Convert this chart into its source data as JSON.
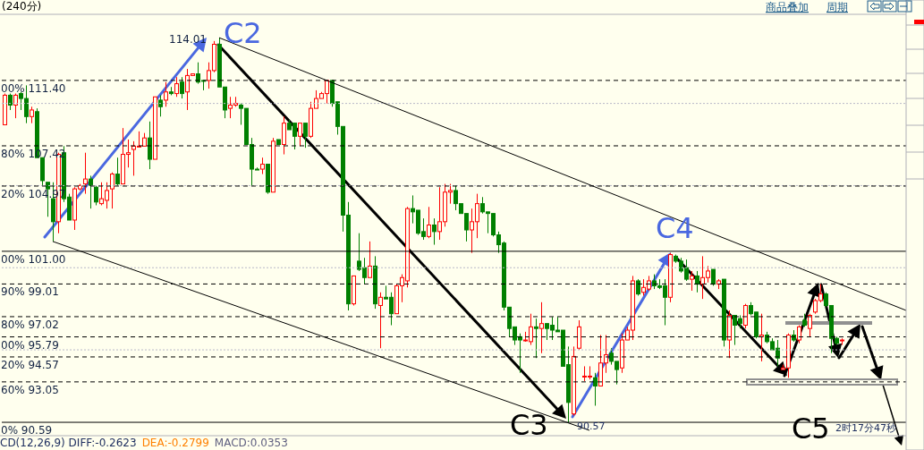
{
  "chart_data": {
    "type": "candlestick",
    "categories": [
      null,
      null,
      null,
      null,
      null,
      null,
      null,
      null,
      null,
      null,
      null,
      null,
      null,
      null,
      null,
      null,
      null,
      null,
      null,
      null,
      null,
      null,
      null,
      null,
      null,
      null,
      null,
      null,
      null,
      null,
      null,
      null,
      null,
      null,
      null,
      null,
      null,
      null,
      null,
      null,
      null,
      null,
      null,
      null,
      null,
      null,
      null,
      null,
      null,
      null,
      null,
      null,
      null,
      null,
      null,
      null,
      null,
      null,
      null,
      null,
      null,
      null,
      null,
      null,
      null,
      null,
      null,
      null,
      null,
      null,
      null,
      null,
      null,
      null,
      null,
      null,
      null,
      null,
      null,
      null,
      null,
      null,
      null,
      null,
      null,
      null,
      null,
      null,
      null,
      null,
      null,
      null,
      null,
      null,
      null,
      null,
      null,
      null,
      null,
      null,
      null,
      null,
      null,
      null,
      null,
      null,
      null,
      null,
      null,
      null,
      null,
      null,
      null,
      null,
      null,
      null,
      null,
      null,
      null,
      null,
      null,
      null,
      null,
      null,
      null,
      null,
      null,
      null,
      null,
      null,
      null,
      null,
      null,
      null,
      null,
      null,
      null,
      null,
      null,
      null,
      null,
      null,
      null,
      null,
      null,
      null,
      null,
      null,
      null,
      null,
      null,
      null,
      null,
      null,
      null,
      null,
      null,
      null,
      null,
      null,
      null,
      null,
      null,
      null,
      null,
      null,
      null,
      null,
      null
    ],
    "ohlc": [
      [
        108.7,
        110.6,
        108.7,
        110.5
      ],
      [
        110.5,
        110.6,
        109.6,
        109.9
      ],
      [
        109.9,
        110.6,
        109.1,
        110.5
      ],
      [
        110.6,
        110.7,
        109.6,
        110.3
      ],
      [
        110.3,
        111.1,
        108.8,
        109.2
      ],
      [
        109.2,
        109.8,
        108.8,
        109.6
      ],
      [
        109.5,
        109.7,
        106.7,
        106.7
      ],
      [
        106.7,
        106.7,
        105.0,
        105.3
      ],
      [
        105.2,
        105.2,
        103.1,
        104.8
      ],
      [
        104.2,
        105.2,
        101.6,
        102.8
      ],
      [
        102.8,
        107.0,
        102.1,
        106.9
      ],
      [
        107.0,
        107.4,
        104.0,
        104.2
      ],
      [
        104.3,
        104.5,
        102.9,
        102.9
      ],
      [
        102.9,
        104.9,
        102.3,
        104.8
      ],
      [
        104.8,
        105.1,
        104.7,
        105.0
      ],
      [
        105.1,
        107.0,
        104.5,
        105.4
      ],
      [
        105.4,
        105.6,
        103.6,
        105.0
      ],
      [
        104.9,
        105.0,
        103.8,
        104.0
      ],
      [
        103.9,
        105.2,
        103.8,
        104.2
      ],
      [
        104.1,
        105.2,
        103.6,
        104.7
      ],
      [
        104.8,
        105.8,
        103.6,
        105.7
      ],
      [
        105.7,
        106.7,
        105.0,
        105.1
      ],
      [
        105.1,
        108.5,
        105.1,
        106.9
      ],
      [
        106.9,
        107.8,
        106.1,
        107.0
      ],
      [
        107.2,
        107.7,
        105.6,
        107.4
      ],
      [
        107.4,
        108.3,
        107.4,
        107.4
      ],
      [
        107.4,
        108.2,
        107.4,
        107.9
      ],
      [
        107.9,
        108.9,
        106.0,
        106.6
      ],
      [
        106.6,
        110.4,
        106.6,
        110.4
      ],
      [
        110.2,
        110.5,
        109.2,
        109.8
      ],
      [
        110.2,
        111.3,
        109.8,
        110.7
      ],
      [
        110.7,
        111.0,
        110.5,
        110.6
      ],
      [
        110.6,
        111.6,
        110.4,
        111.2
      ],
      [
        111.3,
        111.6,
        110.3,
        110.6
      ],
      [
        110.7,
        112.1,
        109.6,
        111.7
      ],
      [
        111.7,
        111.8,
        111.7,
        111.8
      ],
      [
        111.8,
        112.5,
        111.2,
        111.3
      ],
      [
        111.4,
        111.4,
        110.8,
        111.4
      ],
      [
        111.4,
        112.5,
        110.9,
        112.0
      ],
      [
        112.0,
        113.8,
        111.9,
        113.6
      ],
      [
        113.6,
        114.01,
        111.0,
        111.0
      ],
      [
        111.0,
        111.0,
        109.1,
        109.6
      ],
      [
        109.7,
        110.4,
        109.1,
        109.9
      ],
      [
        109.9,
        110.4,
        109.8,
        110.0
      ],
      [
        109.9,
        110.0,
        108.7,
        109.7
      ],
      [
        109.7,
        109.7,
        107.5,
        107.5
      ],
      [
        107.5,
        107.9,
        105.0,
        106.0
      ],
      [
        106.0,
        106.1,
        106.0,
        106.0
      ],
      [
        106.0,
        106.7,
        105.7,
        106.3
      ],
      [
        106.3,
        106.3,
        104.5,
        104.6
      ],
      [
        104.6,
        107.9,
        104.6,
        107.7
      ],
      [
        107.8,
        107.8,
        107.5,
        107.5
      ],
      [
        107.5,
        109.2,
        106.9,
        108.8
      ],
      [
        108.8,
        109.0,
        108.4,
        108.4
      ],
      [
        108.8,
        108.8,
        107.2,
        108.0
      ],
      [
        108.0,
        108.8,
        107.4,
        108.8
      ],
      [
        108.8,
        108.8,
        107.3,
        108.0
      ],
      [
        108.0,
        110.1,
        107.9,
        109.7
      ],
      [
        109.7,
        110.8,
        109.7,
        110.3
      ],
      [
        110.3,
        110.7,
        110.3,
        110.6
      ],
      [
        110.6,
        111.4,
        110.0,
        111.4
      ],
      [
        111.4,
        111.4,
        109.8,
        110.0
      ],
      [
        110.1,
        110.1,
        108.1,
        108.6
      ],
      [
        108.6,
        108.6,
        102.2,
        103.2
      ],
      [
        103.2,
        104.0,
        97.4,
        97.8
      ],
      [
        97.8,
        99.5,
        97.7,
        99.5
      ],
      [
        100.4,
        102.1,
        99.8,
        99.9
      ],
      [
        100.0,
        100.6,
        99.0,
        99.4
      ],
      [
        99.4,
        101.6,
        99.4,
        100.1
      ],
      [
        100.1,
        100.7,
        97.5,
        97.8
      ],
      [
        97.7,
        98.5,
        95.1,
        98.2
      ],
      [
        98.2,
        98.9,
        98.1,
        98.1
      ],
      [
        98.2,
        98.5,
        96.5,
        97.2
      ],
      [
        97.2,
        99.0,
        97.2,
        98.9
      ],
      [
        98.9,
        99.6,
        97.9,
        99.4
      ],
      [
        99.2,
        103.7,
        98.8,
        103.6
      ],
      [
        103.6,
        104.4,
        102.7,
        103.4
      ],
      [
        103.5,
        103.5,
        102.0,
        102.1
      ],
      [
        102.2,
        103.0,
        101.7,
        101.9
      ],
      [
        101.9,
        103.7,
        101.8,
        102.6
      ],
      [
        102.6,
        103.0,
        101.4,
        102.2
      ],
      [
        102.2,
        104.9,
        101.7,
        102.8
      ],
      [
        102.8,
        105.1,
        102.5,
        104.6
      ],
      [
        104.6,
        105.1,
        103.9,
        104.7
      ],
      [
        104.7,
        105.0,
        103.5,
        103.9
      ],
      [
        103.9,
        103.9,
        103.3,
        103.3
      ],
      [
        103.3,
        103.3,
        101.6,
        102.3
      ],
      [
        102.3,
        103.6,
        100.9,
        102.8
      ],
      [
        102.8,
        104.5,
        101.8,
        103.9
      ],
      [
        103.9,
        104.3,
        103.3,
        103.4
      ],
      [
        103.4,
        103.4,
        102.1,
        103.3
      ],
      [
        103.3,
        103.3,
        101.9,
        102.0
      ],
      [
        102.0,
        102.2,
        100.9,
        101.4
      ],
      [
        101.5,
        101.6,
        97.4,
        97.6
      ],
      [
        97.6,
        97.6,
        95.8,
        96.3
      ],
      [
        96.4,
        96.4,
        95.3,
        95.6
      ],
      [
        95.8,
        96.0,
        93.6,
        95.6
      ],
      [
        95.6,
        96.1,
        95.5,
        95.6
      ],
      [
        95.5,
        97.2,
        95.3,
        96.4
      ],
      [
        96.4,
        96.9,
        94.5,
        96.3
      ],
      [
        96.3,
        97.9,
        94.8,
        96.6
      ],
      [
        96.6,
        96.6,
        95.6,
        96.3
      ],
      [
        96.5,
        97.0,
        95.6,
        96.2
      ],
      [
        96.2,
        97.0,
        96.1,
        96.1
      ],
      [
        96.2,
        96.2,
        94.0,
        94.0
      ],
      [
        94.1,
        95.2,
        90.57,
        91.8
      ],
      [
        91.1,
        95.2,
        91.0,
        94.6
      ],
      [
        95.1,
        96.8,
        95.0,
        96.4
      ],
      [
        93.4,
        94.0,
        93.1,
        93.4
      ],
      [
        93.4,
        94.0,
        93.2,
        93.4
      ],
      [
        93.3,
        93.6,
        91.6,
        92.8
      ],
      [
        92.8,
        95.9,
        92.8,
        94.2
      ],
      [
        94.2,
        95.9,
        93.6,
        94.7
      ],
      [
        94.8,
        95.1,
        94.1,
        94.3
      ],
      [
        94.3,
        94.3,
        92.9,
        93.8
      ],
      [
        93.9,
        96.0,
        93.6,
        95.6
      ],
      [
        95.6,
        96.4,
        95.6,
        96.2
      ],
      [
        96.2,
        99.5,
        95.6,
        99.2
      ],
      [
        99.2,
        99.3,
        98.3,
        98.4
      ],
      [
        98.5,
        99.3,
        98.3,
        98.8
      ],
      [
        98.7,
        99.5,
        98.6,
        99.2
      ],
      [
        99.2,
        99.6,
        98.7,
        98.9
      ],
      [
        98.9,
        99.3,
        98.7,
        98.8
      ],
      [
        98.9,
        99.3,
        96.5,
        98.2
      ],
      [
        98.2,
        100.9,
        97.9,
        100.8
      ],
      [
        100.7,
        100.8,
        100.3,
        100.4
      ],
      [
        100.4,
        100.6,
        99.7,
        99.8
      ],
      [
        100.0,
        100.5,
        99.2,
        99.3
      ],
      [
        99.3,
        99.8,
        98.6,
        99.5
      ],
      [
        99.5,
        99.8,
        98.5,
        99.0
      ],
      [
        99.0,
        100.7,
        98.1,
        99.4
      ],
      [
        99.4,
        100.1,
        99.1,
        99.8
      ],
      [
        99.9,
        99.9,
        98.9,
        99.0
      ],
      [
        99.0,
        99.3,
        98.7,
        99.2
      ],
      [
        99.3,
        99.3,
        95.2,
        95.6
      ],
      [
        95.6,
        97.4,
        94.5,
        97.1
      ],
      [
        97.1,
        97.1,
        95.3,
        96.5
      ],
      [
        96.9,
        97.1,
        96.3,
        96.6
      ],
      [
        96.5,
        97.8,
        96.3,
        97.7
      ],
      [
        97.7,
        97.9,
        97.1,
        97.2
      ],
      [
        97.3,
        97.3,
        95.7,
        95.8
      ],
      [
        95.8,
        97.2,
        94.3,
        95.9
      ],
      [
        95.9,
        96.1,
        95.4,
        95.5
      ],
      [
        95.5,
        95.7,
        95.0,
        95.0
      ],
      [
        95.1,
        95.6,
        94.0,
        94.5
      ],
      [
        93.8,
        94.1,
        93.8,
        93.9
      ],
      [
        93.9,
        96.0,
        93.3,
        95.9
      ],
      [
        95.9,
        96.2,
        95.5,
        95.6
      ],
      [
        95.6,
        96.5,
        95.4,
        96.4
      ],
      [
        96.8,
        97.2,
        96.4,
        96.5
      ],
      [
        96.3,
        97.2,
        95.8,
        97.1
      ],
      [
        97.3,
        98.1,
        97.2,
        98.0
      ],
      [
        98.0,
        99.0,
        97.9,
        98.4
      ],
      [
        98.4,
        98.5,
        97.6,
        97.7
      ],
      [
        97.7,
        97.7,
        94.8,
        95.7
      ],
      [
        95.7,
        95.8,
        95.3,
        95.4
      ],
      [
        95.6,
        95.7,
        95.3,
        95.6
      ],
      null,
      null,
      null,
      null,
      null,
      null,
      null,
      null,
      null,
      null,
      null,
      null
    ],
    "colors": [
      "#ff0000",
      "#008000",
      "#ff0000",
      "#008000",
      "#008000",
      "#ff0000",
      "#008000",
      "#008000",
      "#008000",
      "#008000",
      "#ff0000",
      "#008000",
      "#008000",
      "#ff0000",
      "#ff0000",
      "#ff0000",
      "#008000",
      "#008000",
      "#ff0000",
      "#ff0000",
      "#ff0000",
      "#008000",
      "#ff0000",
      "#ff0000",
      "#ff0000",
      "#ff0000",
      "#ff0000",
      "#008000",
      "#ff0000",
      "#008000",
      "#ff0000",
      "#008000",
      "#ff0000",
      "#008000",
      "#ff0000",
      "#ff0000",
      "#008000",
      "#008000",
      "#ff0000",
      "#ff0000",
      "#008000",
      "#008000",
      "#ff0000",
      "#ff0000",
      "#008000",
      "#008000",
      "#008000",
      "#008000",
      "#ff0000",
      "#008000",
      "#ff0000",
      "#008000",
      "#ff0000",
      "#008000",
      "#008000",
      "#ff0000",
      "#008000",
      "#ff0000",
      "#ff0000",
      "#ff0000",
      "#ff0000",
      "#008000",
      "#008000",
      "#008000",
      "#008000",
      "#ff0000",
      "#008000",
      "#008000",
      "#ff0000",
      "#008000",
      "#ff0000",
      "#008000",
      "#008000",
      "#ff0000",
      "#ff0000",
      "#ff0000",
      "#008000",
      "#008000",
      "#008000",
      "#ff0000",
      "#008000",
      "#ff0000",
      "#ff0000",
      "#ff0000",
      "#008000",
      "#008000",
      "#008000",
      "#ff0000",
      "#ff0000",
      "#008000",
      "#008000",
      "#008000",
      "#008000",
      "#008000",
      "#008000",
      "#008000",
      "#008000",
      "#ff0000",
      "#ff0000",
      "#008000",
      "#ff0000",
      "#008000",
      "#008000",
      "#008000",
      "#008000",
      "#008000",
      "#ff0000",
      "#ff0000",
      "#ff0000",
      "#ff0000",
      "#008000",
      "#ff0000",
      "#ff0000",
      "#008000",
      "#008000",
      "#ff0000",
      "#ff0000",
      "#ff0000",
      "#008000",
      "#ff0000",
      "#ff0000",
      "#008000",
      "#008000",
      "#008000",
      "#ff0000",
      "#008000",
      "#008000",
      "#008000",
      "#ff0000",
      "#008000",
      "#ff0000",
      "#ff0000",
      "#008000",
      "#ff0000",
      "#008000",
      "#ff0000",
      "#008000",
      "#008000",
      "#ff0000",
      "#008000",
      "#008000",
      "#ff0000",
      "#008000",
      "#008000",
      "#008000",
      "#ff0000",
      "#ff0000",
      "#008000",
      "#ff0000",
      "#008000",
      "#ff0000",
      "#ff0000",
      "#ff0000",
      "#008000",
      "#008000",
      "#008000",
      "#ff0000",
      null,
      null,
      null,
      null,
      null,
      null,
      null,
      null,
      null,
      null,
      null,
      null
    ],
    "series": [
      {
        "type": "line",
        "color": "#000000",
        "values": [
          null,
          null,
          null,
          null,
          null,
          null,
          null,
          null,
          null,
          null,
          null,
          null,
          null,
          null,
          null,
          null,
          null,
          null,
          null,
          null,
          null,
          null,
          null,
          null,
          null,
          null,
          null,
          null,
          null,
          null,
          null,
          null,
          null,
          null,
          null,
          null,
          null,
          null,
          null,
          null,
          114.0,
          null,
          null,
          null,
          null,
          null,
          null,
          null,
          null,
          null,
          null,
          null,
          null,
          null,
          null,
          null,
          null,
          null,
          null,
          null,
          null,
          null,
          null,
          null,
          null,
          null,
          null,
          null,
          null,
          null,
          null,
          null,
          null,
          null,
          null,
          null,
          null,
          null,
          null,
          null,
          null,
          null,
          null,
          null,
          null,
          null,
          null,
          null,
          null,
          null,
          null,
          null,
          null,
          null,
          null,
          null,
          null,
          null,
          null,
          null,
          null,
          null,
          null,
          null,
          null,
          null,
          null,
          null,
          null,
          null,
          null,
          null,
          null,
          null,
          null,
          null,
          null,
          null,
          null,
          null,
          null,
          null,
          null,
          null,
          null,
          null,
          null,
          null,
          null,
          null,
          null,
          null,
          null,
          null,
          null,
          null,
          null,
          null,
          null,
          null,
          null,
          null,
          null,
          null,
          null,
          null,
          null,
          null,
          null,
          null,
          null,
          null,
          null,
          null,
          null,
          null,
          null,
          null,
          null,
          null,
          null,
          null,
          null,
          null,
          null,
          null,
          null,
          null,
          97.4
        ]
      },
      {
        "type": "line",
        "color": "#000000",
        "values": [
          null,
          null,
          null,
          null,
          null,
          null,
          null,
          null,
          null,
          101.6,
          null,
          null,
          null,
          null,
          null,
          null,
          null,
          null,
          null,
          null,
          null,
          null,
          null,
          null,
          null,
          null,
          null,
          null,
          null,
          null,
          null,
          null,
          null,
          null,
          null,
          null,
          null,
          null,
          null,
          null,
          null,
          null,
          null,
          null,
          null,
          null,
          null,
          null,
          null,
          null,
          null,
          null,
          null,
          null,
          null,
          null,
          null,
          null,
          null,
          null,
          null,
          null,
          null,
          null,
          null,
          null,
          null,
          null,
          null,
          null,
          null,
          null,
          null,
          null,
          null,
          null,
          null,
          null,
          null,
          null,
          null,
          null,
          null,
          null,
          null,
          null,
          null,
          null,
          null,
          null,
          null,
          null,
          null,
          null,
          null,
          null,
          null,
          null,
          null,
          null,
          null,
          null,
          null,
          null,
          null,
          null,
          null,
          null,
          null,
          90.1,
          null,
          null,
          null,
          null,
          null,
          null,
          null,
          null,
          null,
          null,
          null,
          null,
          null,
          null,
          null,
          null,
          null,
          null,
          null,
          null,
          null,
          null,
          null,
          null,
          null,
          null,
          null,
          null,
          null,
          null,
          null,
          null,
          null,
          null,
          null,
          null,
          null,
          null,
          null,
          null,
          null,
          null,
          null,
          null,
          null,
          null,
          null,
          null,
          null,
          null,
          null,
          null,
          null,
          null,
          null,
          null,
          null,
          null,
          null
        ]
      }
    ],
    "ylim": [
      89.83,
      115.37
    ],
    "yticks": [
      {
        "value": 95,
        "label": null
      },
      {
        "value": 100,
        "label": null
      },
      {
        "value": 105,
        "label": null
      },
      {
        "value": 110,
        "label": null
      }
    ],
    "grid": "y",
    "ref_lines": [
      {
        "axis": "y",
        "value": 111.4,
        "label": "00% 111.40",
        "color": "#000000",
        "line_style": "dashed"
      },
      {
        "axis": "y",
        "value": 107.42,
        "label": "80% 107.42",
        "color": "#000000",
        "line_style": "dashed"
      },
      {
        "axis": "y",
        "value": 104.97,
        "label": "20% 104.97",
        "color": "#000000",
        "line_style": "dashed"
      },
      {
        "axis": "y",
        "value": 101.0,
        "label": "00% 101.00",
        "color": "#000000",
        "line_style": "solid"
      },
      {
        "axis": "y",
        "value": 99.01,
        "label": "90% 99.01",
        "color": "#000000",
        "line_style": "dashed"
      },
      {
        "axis": "y",
        "value": 97.02,
        "label": "80% 97.02",
        "color": "#000000",
        "line_style": "dashed"
      },
      {
        "axis": "y",
        "value": 95.79,
        "label": "00% 95.79",
        "color": "#000000",
        "line_style": "dashed"
      },
      {
        "axis": "y",
        "value": 94.57,
        "label": "20% 94.57",
        "color": "#000000",
        "line_style": "dashed"
      },
      {
        "axis": "y",
        "value": 93.05,
        "label": "60% 93.05",
        "color": "#000000",
        "line_style": "dashed"
      },
      {
        "axis": "y",
        "value": 90.59,
        "label": "0% 90.59",
        "color": "#000000",
        "line_style": "solid"
      }
    ],
    "annotations": [
      "(240分)",
      "商品叠加",
      "周期",
      "114.01",
      "C2",
      "C3",
      "C4",
      "C5",
      "90.57",
      "2时17分47秒",
      "CD(12,26,9) DIFF:-0.2623",
      "DEA:-0.2799",
      "MACD:0.0353"
    ]
  }
}
